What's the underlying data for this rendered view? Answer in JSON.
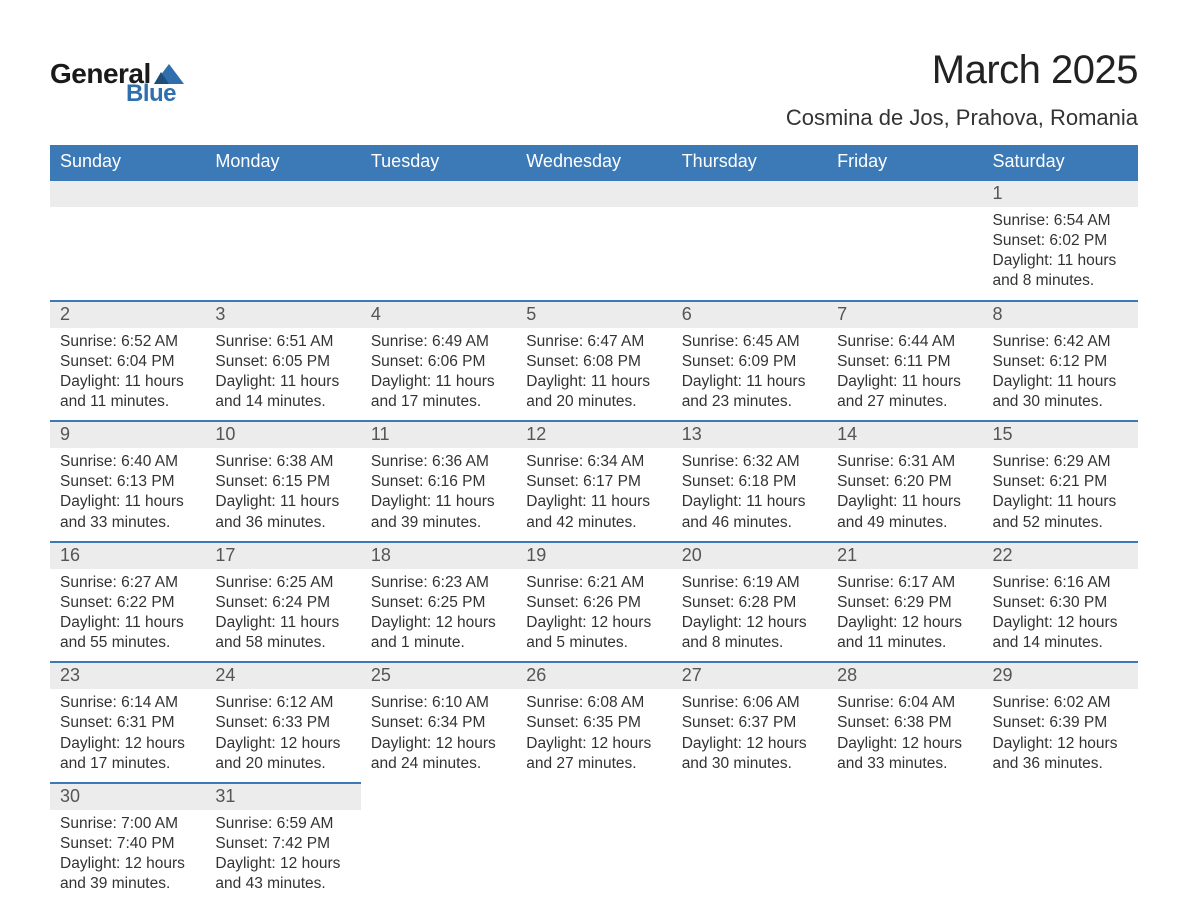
{
  "logo": {
    "general": "General",
    "blue": "Blue"
  },
  "header": {
    "title": "March 2025",
    "subtitle": "Cosmina de Jos, Prahova, Romania"
  },
  "calendar": {
    "header_bg": "#3b79b7",
    "header_fg": "#ffffff",
    "daynum_bg": "#ececec",
    "daynum_fg": "#555555",
    "border_color": "#3b79b7",
    "body_fg": "#333333",
    "font_family": "Arial",
    "title_fontsize": 40,
    "subtitle_fontsize": 22,
    "dow_fontsize": 18,
    "daynum_fontsize": 18,
    "body_fontsize": 15.5,
    "days_of_week": [
      "Sunday",
      "Monday",
      "Tuesday",
      "Wednesday",
      "Thursday",
      "Friday",
      "Saturday"
    ],
    "weeks": [
      [
        null,
        null,
        null,
        null,
        null,
        null,
        {
          "n": "1",
          "sunrise": "6:54 AM",
          "sunset": "6:02 PM",
          "daylight": "11 hours and 8 minutes."
        }
      ],
      [
        {
          "n": "2",
          "sunrise": "6:52 AM",
          "sunset": "6:04 PM",
          "daylight": "11 hours and 11 minutes."
        },
        {
          "n": "3",
          "sunrise": "6:51 AM",
          "sunset": "6:05 PM",
          "daylight": "11 hours and 14 minutes."
        },
        {
          "n": "4",
          "sunrise": "6:49 AM",
          "sunset": "6:06 PM",
          "daylight": "11 hours and 17 minutes."
        },
        {
          "n": "5",
          "sunrise": "6:47 AM",
          "sunset": "6:08 PM",
          "daylight": "11 hours and 20 minutes."
        },
        {
          "n": "6",
          "sunrise": "6:45 AM",
          "sunset": "6:09 PM",
          "daylight": "11 hours and 23 minutes."
        },
        {
          "n": "7",
          "sunrise": "6:44 AM",
          "sunset": "6:11 PM",
          "daylight": "11 hours and 27 minutes."
        },
        {
          "n": "8",
          "sunrise": "6:42 AM",
          "sunset": "6:12 PM",
          "daylight": "11 hours and 30 minutes."
        }
      ],
      [
        {
          "n": "9",
          "sunrise": "6:40 AM",
          "sunset": "6:13 PM",
          "daylight": "11 hours and 33 minutes."
        },
        {
          "n": "10",
          "sunrise": "6:38 AM",
          "sunset": "6:15 PM",
          "daylight": "11 hours and 36 minutes."
        },
        {
          "n": "11",
          "sunrise": "6:36 AM",
          "sunset": "6:16 PM",
          "daylight": "11 hours and 39 minutes."
        },
        {
          "n": "12",
          "sunrise": "6:34 AM",
          "sunset": "6:17 PM",
          "daylight": "11 hours and 42 minutes."
        },
        {
          "n": "13",
          "sunrise": "6:32 AM",
          "sunset": "6:18 PM",
          "daylight": "11 hours and 46 minutes."
        },
        {
          "n": "14",
          "sunrise": "6:31 AM",
          "sunset": "6:20 PM",
          "daylight": "11 hours and 49 minutes."
        },
        {
          "n": "15",
          "sunrise": "6:29 AM",
          "sunset": "6:21 PM",
          "daylight": "11 hours and 52 minutes."
        }
      ],
      [
        {
          "n": "16",
          "sunrise": "6:27 AM",
          "sunset": "6:22 PM",
          "daylight": "11 hours and 55 minutes."
        },
        {
          "n": "17",
          "sunrise": "6:25 AM",
          "sunset": "6:24 PM",
          "daylight": "11 hours and 58 minutes."
        },
        {
          "n": "18",
          "sunrise": "6:23 AM",
          "sunset": "6:25 PM",
          "daylight": "12 hours and 1 minute."
        },
        {
          "n": "19",
          "sunrise": "6:21 AM",
          "sunset": "6:26 PM",
          "daylight": "12 hours and 5 minutes."
        },
        {
          "n": "20",
          "sunrise": "6:19 AM",
          "sunset": "6:28 PM",
          "daylight": "12 hours and 8 minutes."
        },
        {
          "n": "21",
          "sunrise": "6:17 AM",
          "sunset": "6:29 PM",
          "daylight": "12 hours and 11 minutes."
        },
        {
          "n": "22",
          "sunrise": "6:16 AM",
          "sunset": "6:30 PM",
          "daylight": "12 hours and 14 minutes."
        }
      ],
      [
        {
          "n": "23",
          "sunrise": "6:14 AM",
          "sunset": "6:31 PM",
          "daylight": "12 hours and 17 minutes."
        },
        {
          "n": "24",
          "sunrise": "6:12 AM",
          "sunset": "6:33 PM",
          "daylight": "12 hours and 20 minutes."
        },
        {
          "n": "25",
          "sunrise": "6:10 AM",
          "sunset": "6:34 PM",
          "daylight": "12 hours and 24 minutes."
        },
        {
          "n": "26",
          "sunrise": "6:08 AM",
          "sunset": "6:35 PM",
          "daylight": "12 hours and 27 minutes."
        },
        {
          "n": "27",
          "sunrise": "6:06 AM",
          "sunset": "6:37 PM",
          "daylight": "12 hours and 30 minutes."
        },
        {
          "n": "28",
          "sunrise": "6:04 AM",
          "sunset": "6:38 PM",
          "daylight": "12 hours and 33 minutes."
        },
        {
          "n": "29",
          "sunrise": "6:02 AM",
          "sunset": "6:39 PM",
          "daylight": "12 hours and 36 minutes."
        }
      ],
      [
        {
          "n": "30",
          "sunrise": "7:00 AM",
          "sunset": "7:40 PM",
          "daylight": "12 hours and 39 minutes."
        },
        {
          "n": "31",
          "sunrise": "6:59 AM",
          "sunset": "7:42 PM",
          "daylight": "12 hours and 43 minutes."
        },
        null,
        null,
        null,
        null,
        null
      ]
    ],
    "labels": {
      "sunrise": "Sunrise:",
      "sunset": "Sunset:",
      "daylight": "Daylight:"
    }
  }
}
